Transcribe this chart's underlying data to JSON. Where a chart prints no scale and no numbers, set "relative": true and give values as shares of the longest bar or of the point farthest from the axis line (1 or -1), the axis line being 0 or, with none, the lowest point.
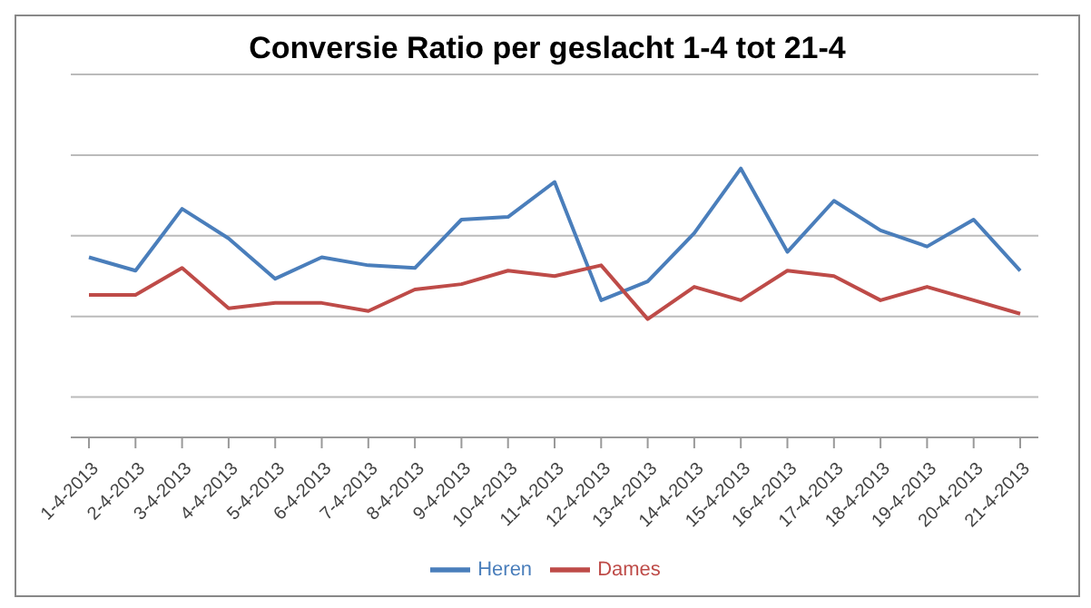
{
  "chart_data": {
    "type": "line",
    "title": "Conversie Ratio per geslacht 1-4 tot 21-4",
    "relative": true,
    "grid": "y",
    "legend": "bottom",
    "marker": "none",
    "line_style": "solid",
    "categories": [
      "1-4-2013",
      "2-4-2013",
      "3-4-2013",
      "4-4-2013",
      "5-4-2013",
      "6-4-2013",
      "7-4-2013",
      "8-4-2013",
      "9-4-2013",
      "10-4-2013",
      "11-4-2013",
      "12-4-2013",
      "13-4-2013",
      "14-4-2013",
      "15-4-2013",
      "16-4-2013",
      "17-4-2013",
      "18-4-2013",
      "19-4-2013",
      "20-4-2013",
      "21-4-2013"
    ],
    "series": [
      {
        "name": "Heren",
        "color": "#4a7ebb",
        "values": [
          0.67,
          0.62,
          0.85,
          0.74,
          0.59,
          0.67,
          0.64,
          0.63,
          0.81,
          0.82,
          0.95,
          0.51,
          0.58,
          0.76,
          1,
          0.69,
          0.88,
          0.77,
          0.71,
          0.81,
          0.62
        ]
      },
      {
        "name": "Dames",
        "color": "#be4b48",
        "values": [
          0.53,
          0.53,
          0.63,
          0.48,
          0.5,
          0.5,
          0.47,
          0.55,
          0.57,
          0.62,
          0.6,
          0.64,
          0.44,
          0.56,
          0.51,
          0.62,
          0.6,
          0.51,
          0.56,
          0.51,
          0.46
        ]
      }
    ]
  }
}
